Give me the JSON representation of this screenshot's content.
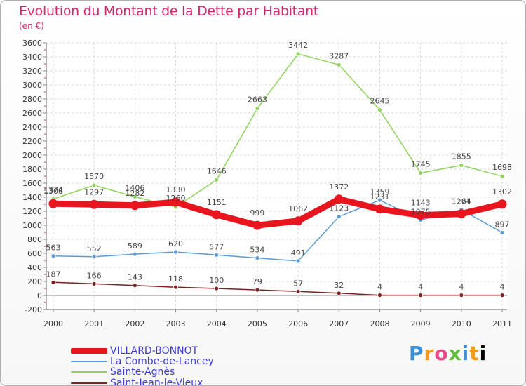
{
  "title": "Evolution du Montant de la Dette par Habitant",
  "subtitle": "(en €)",
  "logo": "Proxiti",
  "chart_data": {
    "type": "line",
    "x": [
      "2000",
      "2001",
      "2002",
      "2003",
      "2004",
      "2005",
      "2006",
      "2007",
      "2008",
      "2009",
      "2010",
      "2011"
    ],
    "ylim": [
      -200,
      3600
    ],
    "yticks": [
      -200,
      0,
      200,
      400,
      600,
      800,
      1000,
      1200,
      1400,
      1600,
      1800,
      2000,
      2200,
      2400,
      2600,
      2800,
      3000,
      3200,
      3400,
      3600
    ],
    "grid": true,
    "legend_position": "bottom-left",
    "series": [
      {
        "name": "VILLARD-BONNOT",
        "color": "#e8141e",
        "values": [
          1308,
          1297,
          1282,
          1330,
          1151,
          999,
          1062,
          1372,
          1231,
          1143,
          1164,
          1302
        ]
      },
      {
        "name": "La Combe-de-Lancey",
        "color": "#5b9bd5",
        "values": [
          563,
          552,
          589,
          620,
          577,
          534,
          491,
          1123,
          1359,
          1075,
          1221,
          897
        ]
      },
      {
        "name": "Sainte-Agnès",
        "color": "#8fd35b",
        "values": [
          1374,
          1570,
          1406,
          1260,
          1646,
          2663,
          3442,
          3287,
          2645,
          1745,
          1855,
          1698
        ]
      },
      {
        "name": "Saint-Jean-le-Vieux",
        "color": "#7b2222",
        "values": [
          187,
          166,
          143,
          118,
          100,
          79,
          57,
          32,
          4,
          4,
          4,
          4
        ]
      }
    ]
  }
}
